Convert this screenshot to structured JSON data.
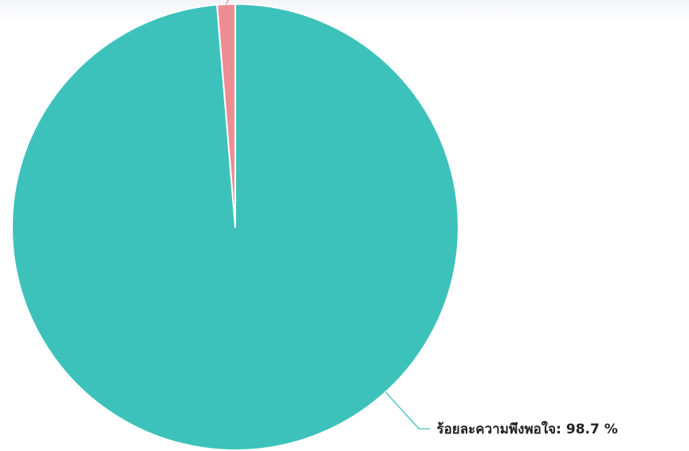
{
  "chart_data": {
    "type": "pie",
    "title": "",
    "slices": [
      {
        "label": "ร้อยละความพึงพอใจ: 98.7 %",
        "value": 98.7,
        "color": "#3dc2bb"
      },
      {
        "label": "",
        "value": 1.3,
        "color": "#ee8c93"
      }
    ],
    "legend": "none"
  }
}
